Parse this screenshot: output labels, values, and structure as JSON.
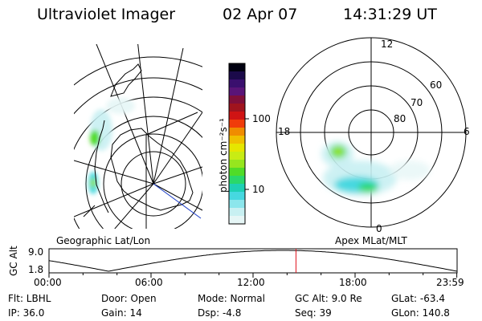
{
  "header": {
    "instrument": "Ultraviolet Imager",
    "date": "02 Apr 07",
    "time": "14:31:29 UT"
  },
  "colorbar": {
    "label": "photon cm⁻²s⁻¹",
    "ticks": [
      "100",
      "10"
    ],
    "colors": [
      "#000010",
      "#1b0a4a",
      "#3a0f6e",
      "#5a1478",
      "#800f3a",
      "#a0141e",
      "#d01414",
      "#f03c0a",
      "#f08c00",
      "#f0c000",
      "#e6e600",
      "#c8ec14",
      "#96e61e",
      "#50dc28",
      "#2ad86a",
      "#1ed0b4",
      "#46d8e0",
      "#8ce6ec",
      "#c8f0f2",
      "#e6f6f6"
    ]
  },
  "maps": {
    "geo_label": "Geographic Lat/Lon",
    "apex_label": "Apex MLat/MLT",
    "apex_mlt": [
      "12",
      "18",
      "6",
      "0"
    ],
    "apex_lat": [
      "60",
      "70",
      "80"
    ]
  },
  "timeline": {
    "ylabel": "GC Alt",
    "yticks": [
      "9.0",
      "1.8"
    ],
    "xticks": [
      "00:00",
      "06:00",
      "12:00",
      "18:00",
      "23:59"
    ],
    "marker_time_hours": 14.525
  },
  "info": {
    "flt": "Flt: LBHL",
    "ip": "IP: 36.0",
    "door": "Door: Open",
    "gain": "Gain: 14",
    "mode": "Mode: Normal",
    "dsp": "Dsp:    -4.8",
    "gcalt": "GC Alt: 9.0 Re",
    "seq": "Seq: 39",
    "glat": "GLat: -63.4",
    "glon": "GLon: 140.8"
  }
}
